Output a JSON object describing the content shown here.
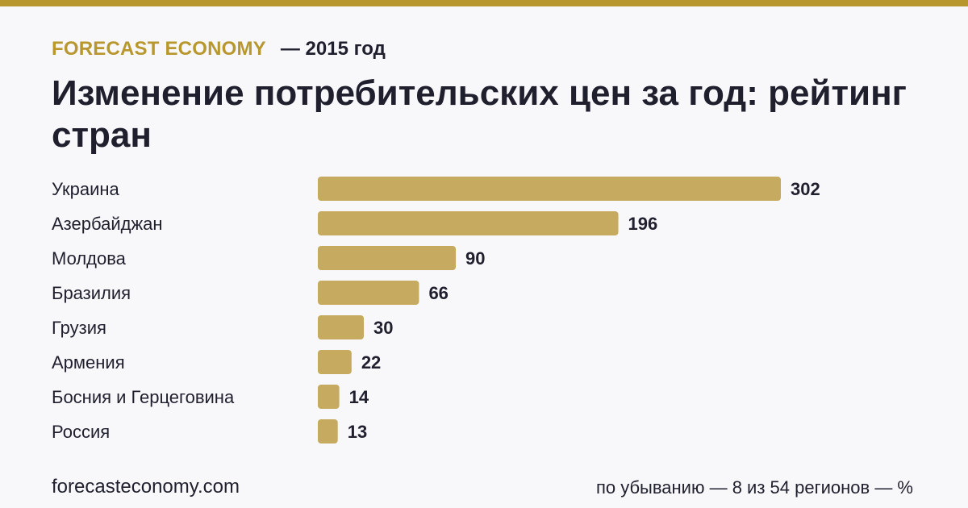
{
  "header": {
    "brand": "FORECAST ECONOMY",
    "year": "— 2015 год"
  },
  "title": "Изменение потребительских цен за год: рейтинг стран",
  "footer": {
    "site": "forecasteconomy.com",
    "note": "по убыванию — 8 из 54 регионов — %"
  },
  "colors": {
    "accent": "#b8972f",
    "bar": "#c6aa5f",
    "background": "#f8f8fb",
    "text": "#1f1f2e"
  },
  "chart_data": {
    "type": "bar",
    "orientation": "horizontal",
    "categories": [
      "Украина",
      "Азербайджан",
      "Молдова",
      "Бразилия",
      "Грузия",
      "Армения",
      "Босния и Герцеговина",
      "Россия"
    ],
    "values": [
      302,
      196,
      90,
      66,
      30,
      22,
      14,
      13
    ],
    "title": "Изменение потребительских цен за год: рейтинг стран",
    "xlabel": "",
    "ylabel": "",
    "unit": "%",
    "xlim": [
      0,
      302
    ],
    "grid": false,
    "legend": "none"
  }
}
